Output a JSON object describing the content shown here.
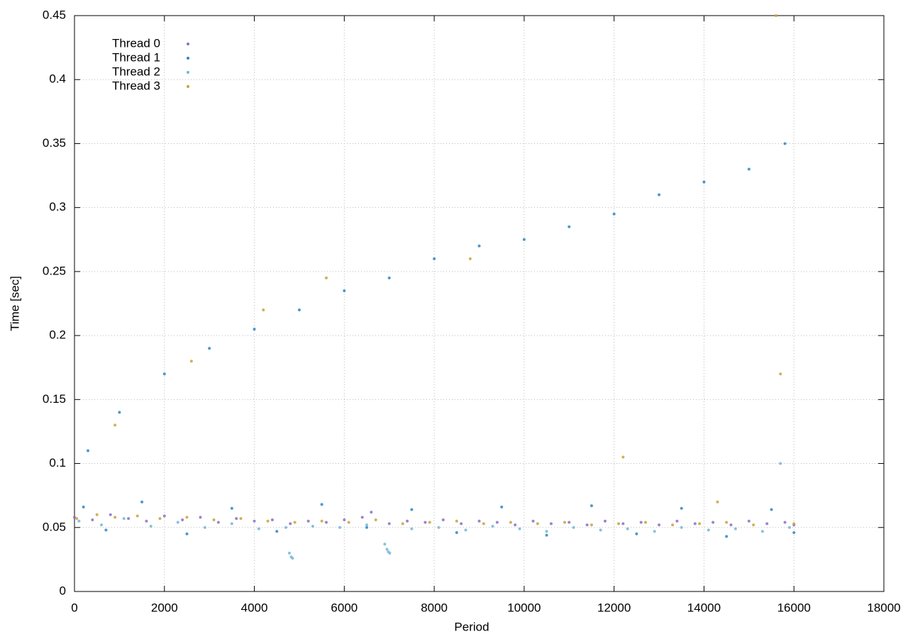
{
  "chart_data": {
    "type": "scatter",
    "x_label": "Period",
    "y_label": "Time [sec]",
    "xlim": [
      0,
      18000
    ],
    "xticks": [
      0,
      2000,
      4000,
      6000,
      8000,
      10000,
      12000,
      14000,
      16000,
      18000
    ],
    "ylim": [
      0,
      0.45
    ],
    "yticks": [
      0,
      0.05,
      0.1,
      0.15,
      0.2,
      0.25,
      0.3,
      0.35,
      0.4,
      0.45
    ],
    "grid": true,
    "legend": "top-left",
    "series": [
      {
        "name": "Thread 0",
        "color": "#8a6fc4",
        "x": [
          0,
          400,
          800,
          1200,
          1600,
          2000,
          2400,
          2800,
          3200,
          3600,
          4000,
          4400,
          4800,
          5200,
          5600,
          6000,
          6400,
          6600,
          7000,
          7400,
          7800,
          8200,
          8600,
          9000,
          9400,
          9800,
          10200,
          10600,
          11000,
          11400,
          11800,
          12200,
          12600,
          13000,
          13400,
          13800,
          14200,
          14600,
          15000,
          15400,
          15800,
          16000
        ],
        "values": [
          0.058,
          0.056,
          0.06,
          0.057,
          0.055,
          0.059,
          0.056,
          0.058,
          0.054,
          0.057,
          0.055,
          0.056,
          0.053,
          0.055,
          0.054,
          0.056,
          0.058,
          0.062,
          0.053,
          0.055,
          0.054,
          0.056,
          0.053,
          0.055,
          0.054,
          0.052,
          0.055,
          0.053,
          0.054,
          0.052,
          0.055,
          0.053,
          0.054,
          0.052,
          0.055,
          0.053,
          0.054,
          0.052,
          0.055,
          0.053,
          0.054,
          0.052
        ]
      },
      {
        "name": "Thread 1",
        "color": "#2e86c1",
        "x": [
          300,
          1000,
          2000,
          3000,
          4000,
          5000,
          6000,
          7000,
          8000,
          9000,
          10000,
          11000,
          12000,
          13000,
          14000,
          15000,
          15800,
          200,
          700,
          1500,
          2500,
          3500,
          4500,
          5500,
          6500,
          7500,
          8500,
          9500,
          10500,
          11500,
          12500,
          13500,
          14500,
          15500,
          16000
        ],
        "values": [
          0.11,
          0.14,
          0.17,
          0.19,
          0.205,
          0.22,
          0.235,
          0.245,
          0.26,
          0.27,
          0.275,
          0.285,
          0.295,
          0.31,
          0.32,
          0.33,
          0.35,
          0.066,
          0.048,
          0.07,
          0.045,
          0.065,
          0.047,
          0.068,
          0.05,
          0.064,
          0.046,
          0.066,
          0.044,
          0.067,
          0.045,
          0.065,
          0.043,
          0.064,
          0.046
        ]
      },
      {
        "name": "Thread 2",
        "color": "#72b6d6",
        "x": [
          100,
          600,
          1100,
          1700,
          2300,
          2900,
          3500,
          4100,
          4700,
          4780,
          4820,
          4850,
          5300,
          5900,
          6500,
          6900,
          6950,
          6980,
          7010,
          7500,
          8100,
          8700,
          9300,
          9900,
          10500,
          11100,
          11700,
          12300,
          12900,
          13500,
          14100,
          14700,
          15300,
          15700,
          15900
        ],
        "values": [
          0.055,
          0.052,
          0.057,
          0.051,
          0.054,
          0.05,
          0.053,
          0.049,
          0.05,
          0.03,
          0.027,
          0.026,
          0.051,
          0.05,
          0.052,
          0.037,
          0.033,
          0.031,
          0.03,
          0.049,
          0.05,
          0.048,
          0.051,
          0.049,
          0.047,
          0.05,
          0.048,
          0.049,
          0.047,
          0.05,
          0.048,
          0.049,
          0.047,
          0.1,
          0.05
        ]
      },
      {
        "name": "Thread 3",
        "color": "#c9a23a",
        "x": [
          50,
          500,
          900,
          1400,
          1900,
          2500,
          3100,
          3700,
          4300,
          4900,
          5500,
          6100,
          6700,
          7300,
          7900,
          8500,
          9100,
          9700,
          10300,
          10900,
          11500,
          12100,
          12700,
          13300,
          13900,
          14500,
          15100,
          15600,
          15700,
          16000,
          900,
          2600,
          4200,
          5600,
          8800,
          12200,
          14300
        ],
        "values": [
          0.057,
          0.06,
          0.058,
          0.059,
          0.057,
          0.058,
          0.056,
          0.057,
          0.055,
          0.054,
          0.055,
          0.054,
          0.056,
          0.053,
          0.054,
          0.055,
          0.053,
          0.054,
          0.053,
          0.054,
          0.052,
          0.053,
          0.054,
          0.052,
          0.053,
          0.054,
          0.052,
          0.45,
          0.17,
          0.053,
          0.13,
          0.18,
          0.22,
          0.245,
          0.26,
          0.105,
          0.07
        ]
      }
    ]
  }
}
